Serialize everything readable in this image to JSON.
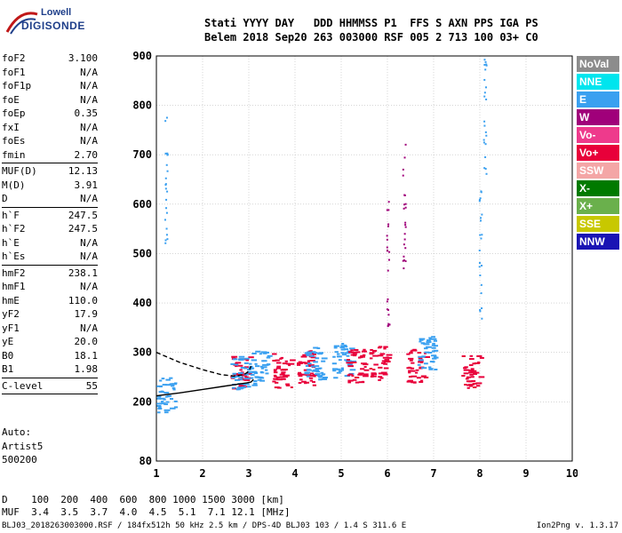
{
  "logo": {
    "line1": "Lowell",
    "line2": "DIGISONDE"
  },
  "header": {
    "line1": "Stati YYYY DAY   DDD HHMMSS P1  FFS S AXN PPS IGA PS",
    "line2": "Belem 2018 Sep20 263 003000 RSF 005 2 713 100 03+ C0"
  },
  "params": [
    {
      "key": "foF2",
      "value": "3.100"
    },
    {
      "key": "foF1",
      "value": "N/A"
    },
    {
      "key": "foF1p",
      "value": "N/A"
    },
    {
      "key": "foE",
      "value": "N/A"
    },
    {
      "key": "foEp",
      "value": "0.35"
    },
    {
      "key": "fxI",
      "value": "N/A"
    },
    {
      "key": "foEs",
      "value": "N/A"
    },
    {
      "key": "fmin",
      "value": "2.70"
    },
    {
      "sep": true
    },
    {
      "key": "MUF(D)",
      "value": "12.13"
    },
    {
      "key": "M(D)",
      "value": "3.91"
    },
    {
      "key": "D",
      "value": "N/A"
    },
    {
      "sep": true
    },
    {
      "key": "h`F",
      "value": "247.5"
    },
    {
      "key": "h`F2",
      "value": "247.5"
    },
    {
      "key": "h`E",
      "value": "N/A"
    },
    {
      "key": "h`Es",
      "value": "N/A"
    },
    {
      "sep": true
    },
    {
      "key": "hmF2",
      "value": "238.1"
    },
    {
      "key": "hmF1",
      "value": "N/A"
    },
    {
      "key": "hmE",
      "value": "110.0"
    },
    {
      "key": "yF2",
      "value": "17.9"
    },
    {
      "key": "yF1",
      "value": "N/A"
    },
    {
      "key": "yE",
      "value": "20.0"
    },
    {
      "key": "B0",
      "value": "18.1"
    },
    {
      "key": "B1",
      "value": "1.98"
    },
    {
      "sep": true
    },
    {
      "key": "C-level",
      "value": "55"
    },
    {
      "sep": true
    }
  ],
  "auto": {
    "line1": "Auto:",
    "line2": "Artist5",
    "line3": "500200"
  },
  "legend": [
    {
      "label": "NoVal",
      "bg": "#8c8c8c",
      "fg": "#ffffff"
    },
    {
      "label": "NNE",
      "bg": "#00e5ee",
      "fg": "#ffffff"
    },
    {
      "label": "E",
      "bg": "#3aa0f0",
      "fg": "#ffffff"
    },
    {
      "label": "W",
      "bg": "#a0007a",
      "fg": "#ffffff"
    },
    {
      "label": "Vo-",
      "bg": "#ee3a8c",
      "fg": "#ffffff"
    },
    {
      "label": "Vo+",
      "bg": "#e8003a",
      "fg": "#ffffff"
    },
    {
      "label": "SSW",
      "bg": "#f4a6a6",
      "fg": "#ffffff"
    },
    {
      "label": "X-",
      "bg": "#007a00",
      "fg": "#ffffff"
    },
    {
      "label": "X+",
      "bg": "#6ab04c",
      "fg": "#ffffff"
    },
    {
      "label": "SSE",
      "bg": "#c8c800",
      "fg": "#ffffff"
    },
    {
      "label": "NNW",
      "bg": "#1a14b4",
      "fg": "#ffffff"
    }
  ],
  "chart_data": {
    "type": "scatter",
    "title": "",
    "xlabel": "",
    "ylabel": "",
    "xlim": [
      1,
      10
    ],
    "ylim": [
      80,
      900
    ],
    "x_ticks": [
      1,
      2,
      3,
      4,
      5,
      6,
      7,
      8,
      9,
      10
    ],
    "y_ticks": [
      80,
      200,
      300,
      400,
      500,
      600,
      700,
      800,
      900
    ],
    "grid": true,
    "traces": [
      {
        "name": "O-trace fit (dashed)",
        "x": [
          0.9,
          1.5,
          2.0,
          2.4,
          2.7,
          2.9,
          3.0,
          3.05
        ],
        "y": [
          300,
          280,
          265,
          255,
          252,
          255,
          262,
          272
        ],
        "style": "dashed"
      },
      {
        "name": "profile (solid)",
        "x": [
          0.9,
          1.5,
          2.0,
          2.5,
          2.8,
          2.95,
          3.05,
          3.1
        ],
        "y": [
          212,
          218,
          225,
          232,
          236,
          238,
          240,
          245
        ],
        "style": "solid"
      }
    ],
    "echo_clusters": [
      {
        "x": 2.8,
        "y": 262,
        "direction": "Vo+"
      },
      {
        "x": 2.8,
        "y": 260,
        "direction": "E"
      },
      {
        "x": 3.2,
        "y": 270,
        "direction": "E"
      },
      {
        "x": 3.7,
        "y": 265,
        "direction": "Vo+"
      },
      {
        "x": 4.2,
        "y": 270,
        "direction": "Vo+"
      },
      {
        "x": 4.4,
        "y": 280,
        "direction": "E"
      },
      {
        "x": 5.0,
        "y": 285,
        "direction": "E"
      },
      {
        "x": 5.3,
        "y": 275,
        "direction": "Vo+"
      },
      {
        "x": 5.8,
        "y": 280,
        "direction": "Vo+"
      },
      {
        "x": 6.6,
        "y": 275,
        "direction": "Vo+"
      },
      {
        "x": 7.8,
        "y": 260,
        "direction": "Vo+"
      },
      {
        "x": 6.0,
        "y": 480,
        "direction": "W"
      },
      {
        "x": 6.35,
        "y": 600,
        "direction": "W"
      },
      {
        "x": 6.85,
        "y": 300,
        "direction": "E"
      },
      {
        "x": 8.0,
        "y": 500,
        "direction": "E"
      },
      {
        "x": 8.1,
        "y": 780,
        "direction": "E"
      },
      {
        "x": 1.2,
        "y": 650,
        "direction": "E"
      },
      {
        "x": 1.2,
        "y": 215,
        "direction": "E"
      }
    ]
  },
  "dmuf": {
    "d_label": "D",
    "d_values": "100  200  400  600  800 1000 1500 3000 [km]",
    "muf_label": "MUF",
    "muf_values": "3.4  3.5  3.7  4.0  4.5  5.1  7.1 12.1 [MHz]"
  },
  "footer": "BLJ03_2018263003000.RSF / 184fx512h 50 kHz 2.5 km / DPS-4D BLJ03 103 / 1.4 S 311.6 E",
  "version": "Ion2Png v. 1.3.17"
}
